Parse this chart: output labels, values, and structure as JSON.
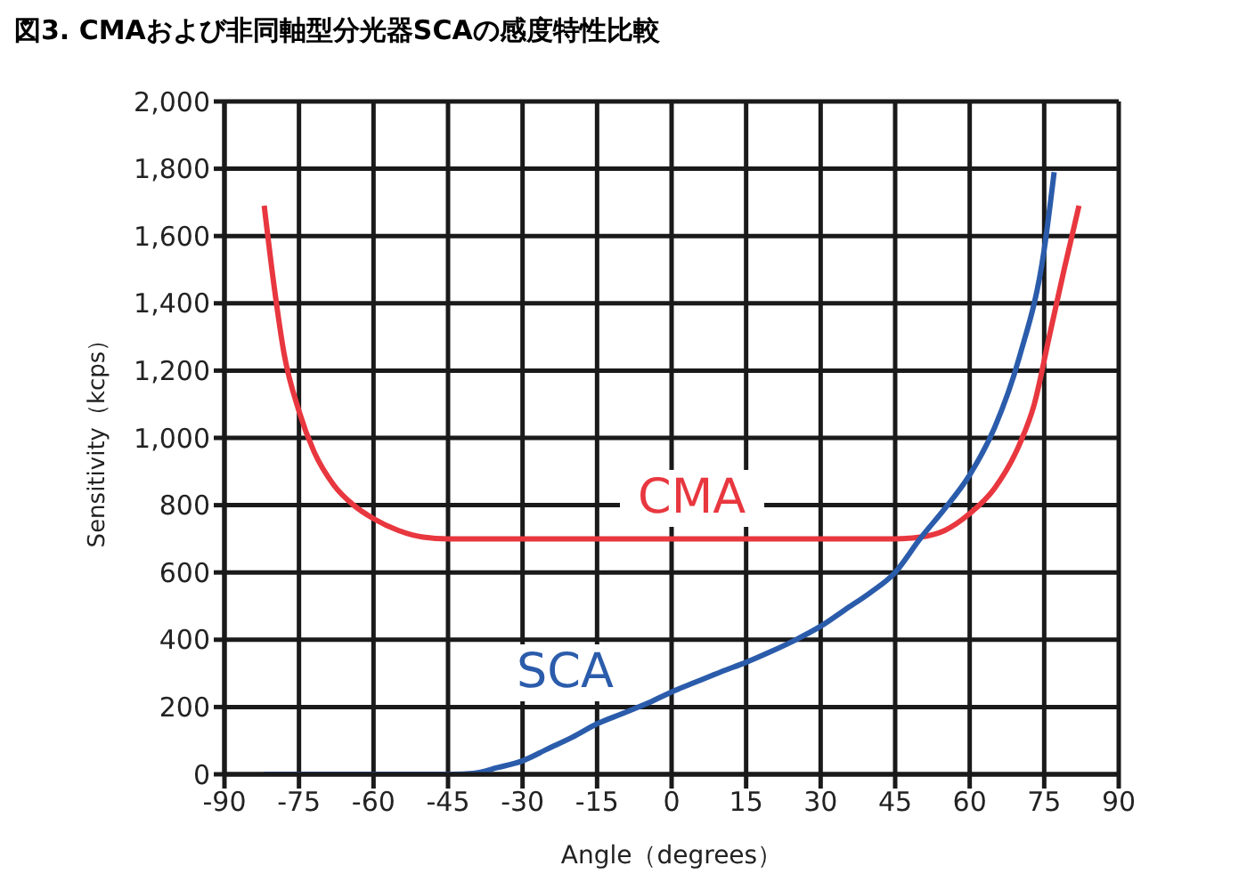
{
  "chart_data": {
    "type": "line",
    "title": "図3. CMAおよび非同軸型分光器SCAの感度特性比較",
    "xlabel": "Angle（degrees）",
    "ylabel": "Sensitivity（kcps）",
    "xlim": [
      -90,
      90
    ],
    "xticks": [
      -90,
      -75,
      -60,
      -45,
      -30,
      -15,
      0,
      15,
      30,
      45,
      60,
      75,
      90
    ],
    "ylim": [
      0,
      2000
    ],
    "yticks": [
      0,
      200,
      400,
      600,
      800,
      {
        "value": 1000,
        "label": "1,000"
      },
      {
        "value": 1200,
        "label": "1,200"
      },
      {
        "value": 1400,
        "label": "1,400"
      },
      {
        "value": 1600,
        "label": "1,600"
      },
      {
        "value": 1800,
        "label": "1,800"
      },
      {
        "value": 2000,
        "label": "2,000"
      }
    ],
    "grid": true,
    "legend": false,
    "marker": "none",
    "line_style": "solid",
    "series": [
      {
        "name": "CMA",
        "color": "#e8373f",
        "x": [
          -82,
          -80,
          -78,
          -75,
          -72,
          -68,
          -64,
          -60,
          -55,
          -50,
          -45,
          0,
          45,
          50,
          55,
          60,
          65,
          70,
          73,
          76,
          79,
          82
        ],
        "values": [
          1690,
          1450,
          1250,
          1080,
          960,
          860,
          800,
          760,
          725,
          705,
          700,
          700,
          700,
          705,
          725,
          775,
          850,
          980,
          1100,
          1300,
          1500,
          1690
        ]
      },
      {
        "name": "SCA",
        "color": "#2b5cab",
        "x": [
          -82,
          -45,
          -40,
          -35,
          -30,
          -25,
          -20,
          -15,
          -10,
          -5,
          0,
          5,
          10,
          15,
          20,
          25,
          30,
          35,
          40,
          45,
          50,
          55,
          60,
          65,
          70,
          75,
          77
        ],
        "values": [
          0,
          0,
          3,
          20,
          40,
          75,
          110,
          150,
          180,
          210,
          245,
          275,
          305,
          333,
          365,
          400,
          440,
          490,
          540,
          600,
          700,
          790,
          890,
          1030,
          1240,
          1560,
          1790
        ]
      }
    ]
  }
}
